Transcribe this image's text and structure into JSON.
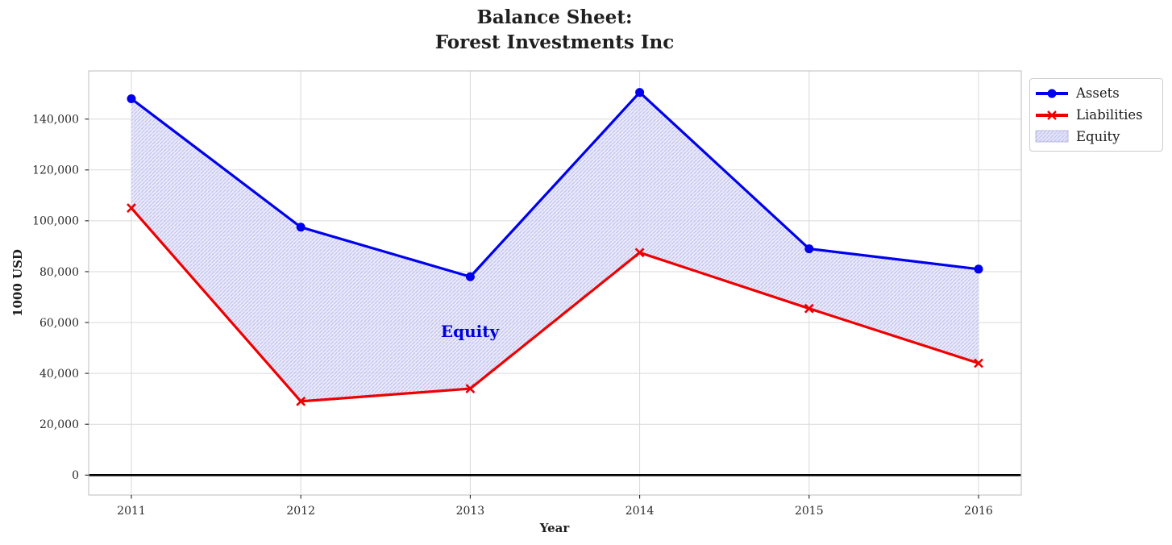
{
  "chart_data": {
    "type": "line",
    "title": "Balance Sheet:\nForest Investments Inc",
    "title_lines": [
      "Balance Sheet:",
      "Forest Investments Inc"
    ],
    "xlabel": "Year",
    "ylabel": "1000 USD",
    "categories": [
      2011,
      2012,
      2013,
      2014,
      2015,
      2016
    ],
    "series": [
      {
        "name": "Assets",
        "color": "#0000ee",
        "marker": "circle",
        "line_width": 3.2,
        "values": [
          148000,
          97500,
          78000,
          150500,
          89000,
          81000
        ]
      },
      {
        "name": "Liabilities",
        "color": "#ee0000",
        "marker": "x",
        "line_width": 3.2,
        "values": [
          105000,
          29000,
          34000,
          87500,
          65500,
          44000
        ]
      }
    ],
    "area": {
      "name": "Equity",
      "between": [
        "Assets",
        "Liabilities"
      ],
      "values": [
        43000,
        68500,
        44000,
        63000,
        23500,
        37000
      ],
      "facecolor": "#e6e6fa",
      "face_alpha": 0.75,
      "hatch": "//",
      "hatch_color": "#c6c6ef"
    },
    "annotation": {
      "text": "Equity",
      "x": 2013,
      "y": 56000,
      "color": "#0000e0"
    },
    "y_ticks": [
      0,
      20000,
      40000,
      60000,
      80000,
      100000,
      120000,
      140000
    ],
    "ylim": [
      -8000,
      159000
    ],
    "xlim": [
      2010.75,
      2016.25
    ],
    "grid": true,
    "grid_color": "#d9d9d9",
    "spine_color": "#cccccc",
    "zero_line_color": "#000000",
    "tick_label_color": "#2b2b2b",
    "legend": {
      "position": "outside-top-right",
      "entries": [
        "Assets",
        "Liabilities",
        "Equity"
      ]
    }
  }
}
